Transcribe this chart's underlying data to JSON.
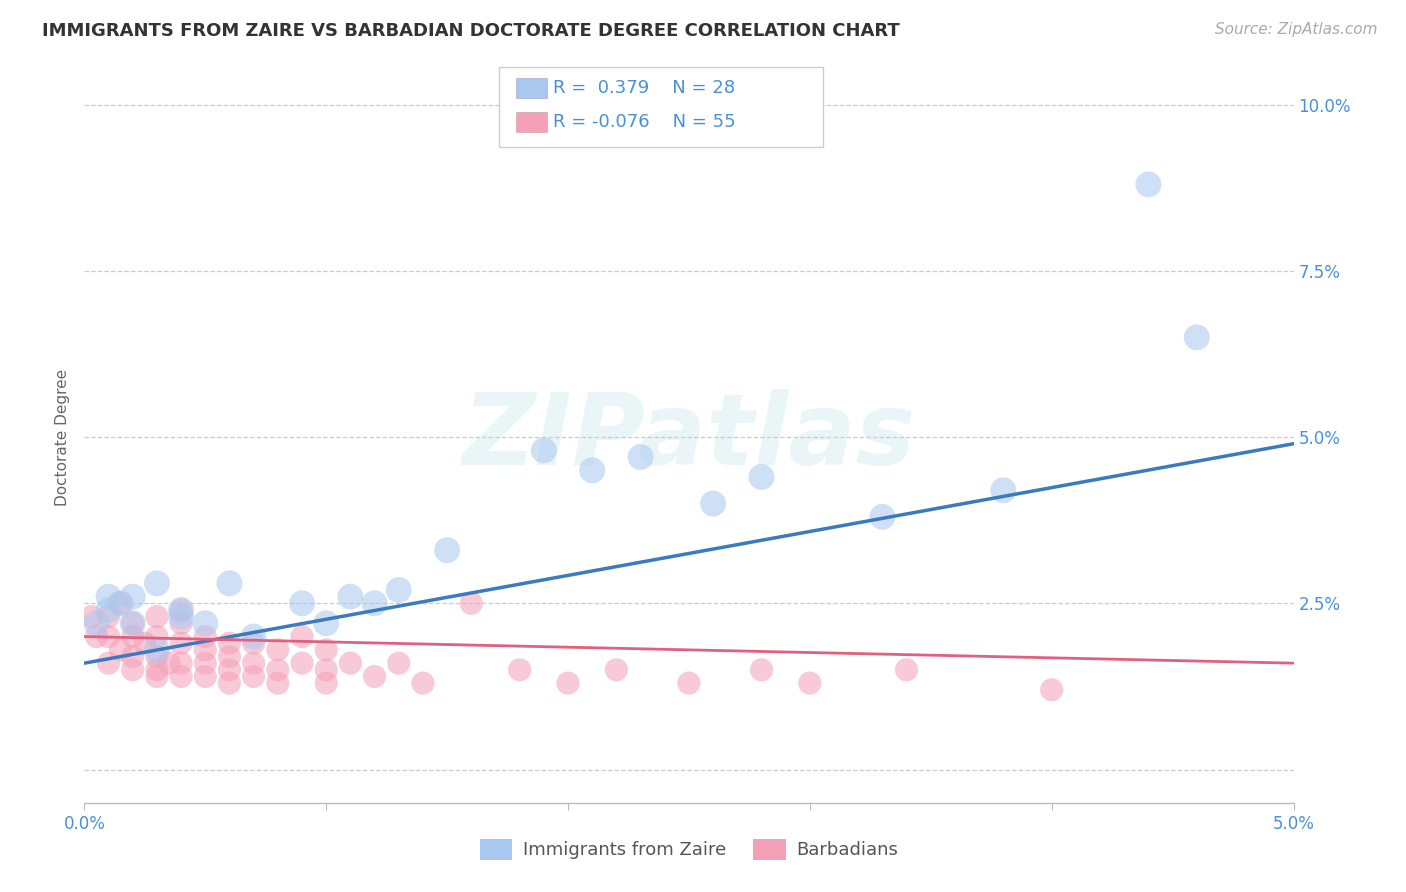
{
  "title": "IMMIGRANTS FROM ZAIRE VS BARBADIAN DOCTORATE DEGREE CORRELATION CHART",
  "source": "Source: ZipAtlas.com",
  "xlabel": "",
  "ylabel": "Doctorate Degree",
  "xlim": [
    0.0,
    0.05
  ],
  "ylim": [
    -0.005,
    0.105
  ],
  "xticks": [
    0.0,
    0.01,
    0.02,
    0.03,
    0.04,
    0.05
  ],
  "xticklabels": [
    "0.0%",
    "",
    "",
    "",
    "",
    "5.0%"
  ],
  "yticks": [
    0.0,
    0.025,
    0.05,
    0.075,
    0.1
  ],
  "yticklabels": [
    "",
    "2.5%",
    "5.0%",
    "7.5%",
    "10.0%"
  ],
  "color_blue": "#A8C8F0",
  "color_pink": "#F4A0B8",
  "line_blue": "#3A7ABF",
  "line_pink": "#E06080",
  "watermark_text": "ZIPatlas",
  "blue_scatter": [
    [
      0.0005,
      0.022
    ],
    [
      0.001,
      0.024
    ],
    [
      0.001,
      0.026
    ],
    [
      0.0015,
      0.025
    ],
    [
      0.002,
      0.022
    ],
    [
      0.002,
      0.026
    ],
    [
      0.003,
      0.018
    ],
    [
      0.003,
      0.028
    ],
    [
      0.004,
      0.024
    ],
    [
      0.004,
      0.023
    ],
    [
      0.005,
      0.022
    ],
    [
      0.006,
      0.028
    ],
    [
      0.007,
      0.02
    ],
    [
      0.009,
      0.025
    ],
    [
      0.01,
      0.022
    ],
    [
      0.011,
      0.026
    ],
    [
      0.012,
      0.025
    ],
    [
      0.013,
      0.027
    ],
    [
      0.015,
      0.033
    ],
    [
      0.019,
      0.048
    ],
    [
      0.021,
      0.045
    ],
    [
      0.023,
      0.047
    ],
    [
      0.026,
      0.04
    ],
    [
      0.028,
      0.044
    ],
    [
      0.033,
      0.038
    ],
    [
      0.038,
      0.042
    ],
    [
      0.044,
      0.088
    ],
    [
      0.046,
      0.065
    ]
  ],
  "pink_scatter": [
    [
      0.0003,
      0.023
    ],
    [
      0.0005,
      0.02
    ],
    [
      0.001,
      0.023
    ],
    [
      0.001,
      0.02
    ],
    [
      0.001,
      0.016
    ],
    [
      0.0015,
      0.018
    ],
    [
      0.0015,
      0.025
    ],
    [
      0.002,
      0.015
    ],
    [
      0.002,
      0.017
    ],
    [
      0.002,
      0.02
    ],
    [
      0.002,
      0.022
    ],
    [
      0.0025,
      0.019
    ],
    [
      0.003,
      0.015
    ],
    [
      0.003,
      0.017
    ],
    [
      0.003,
      0.014
    ],
    [
      0.003,
      0.02
    ],
    [
      0.003,
      0.023
    ],
    [
      0.0035,
      0.016
    ],
    [
      0.004,
      0.014
    ],
    [
      0.004,
      0.016
    ],
    [
      0.004,
      0.019
    ],
    [
      0.004,
      0.022
    ],
    [
      0.004,
      0.024
    ],
    [
      0.005,
      0.014
    ],
    [
      0.005,
      0.016
    ],
    [
      0.005,
      0.018
    ],
    [
      0.005,
      0.02
    ],
    [
      0.006,
      0.013
    ],
    [
      0.006,
      0.015
    ],
    [
      0.006,
      0.017
    ],
    [
      0.006,
      0.019
    ],
    [
      0.007,
      0.014
    ],
    [
      0.007,
      0.016
    ],
    [
      0.007,
      0.019
    ],
    [
      0.008,
      0.013
    ],
    [
      0.008,
      0.015
    ],
    [
      0.008,
      0.018
    ],
    [
      0.009,
      0.016
    ],
    [
      0.009,
      0.02
    ],
    [
      0.01,
      0.013
    ],
    [
      0.01,
      0.015
    ],
    [
      0.01,
      0.018
    ],
    [
      0.011,
      0.016
    ],
    [
      0.012,
      0.014
    ],
    [
      0.013,
      0.016
    ],
    [
      0.014,
      0.013
    ],
    [
      0.016,
      0.025
    ],
    [
      0.018,
      0.015
    ],
    [
      0.02,
      0.013
    ],
    [
      0.022,
      0.015
    ],
    [
      0.025,
      0.013
    ],
    [
      0.028,
      0.015
    ],
    [
      0.03,
      0.013
    ],
    [
      0.034,
      0.015
    ],
    [
      0.04,
      0.012
    ]
  ],
  "blue_line_x": [
    0.0,
    0.05
  ],
  "blue_line_y": [
    0.016,
    0.049
  ],
  "pink_line_x": [
    0.0,
    0.05
  ],
  "pink_line_y": [
    0.02,
    0.016
  ],
  "grid_color": "#CCCCCC",
  "bg_color": "#FFFFFF",
  "scatter_size_blue": 350,
  "scatter_size_pink": 280,
  "scatter_alpha": 0.55,
  "title_fontsize": 13,
  "axis_label_fontsize": 11,
  "tick_fontsize": 12,
  "legend_fontsize": 13,
  "source_fontsize": 11
}
